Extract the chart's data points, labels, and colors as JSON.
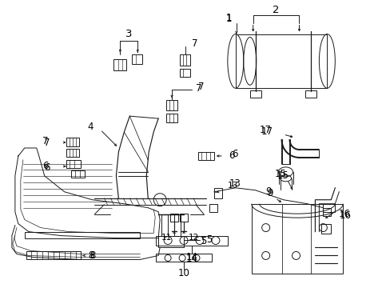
{
  "bg_color": "#ffffff",
  "line_color": "#1a1a1a",
  "label_color": "#000000",
  "figsize": [
    4.89,
    3.6
  ],
  "dpi": 100,
  "lw": 0.7,
  "label_fs": 8.5
}
